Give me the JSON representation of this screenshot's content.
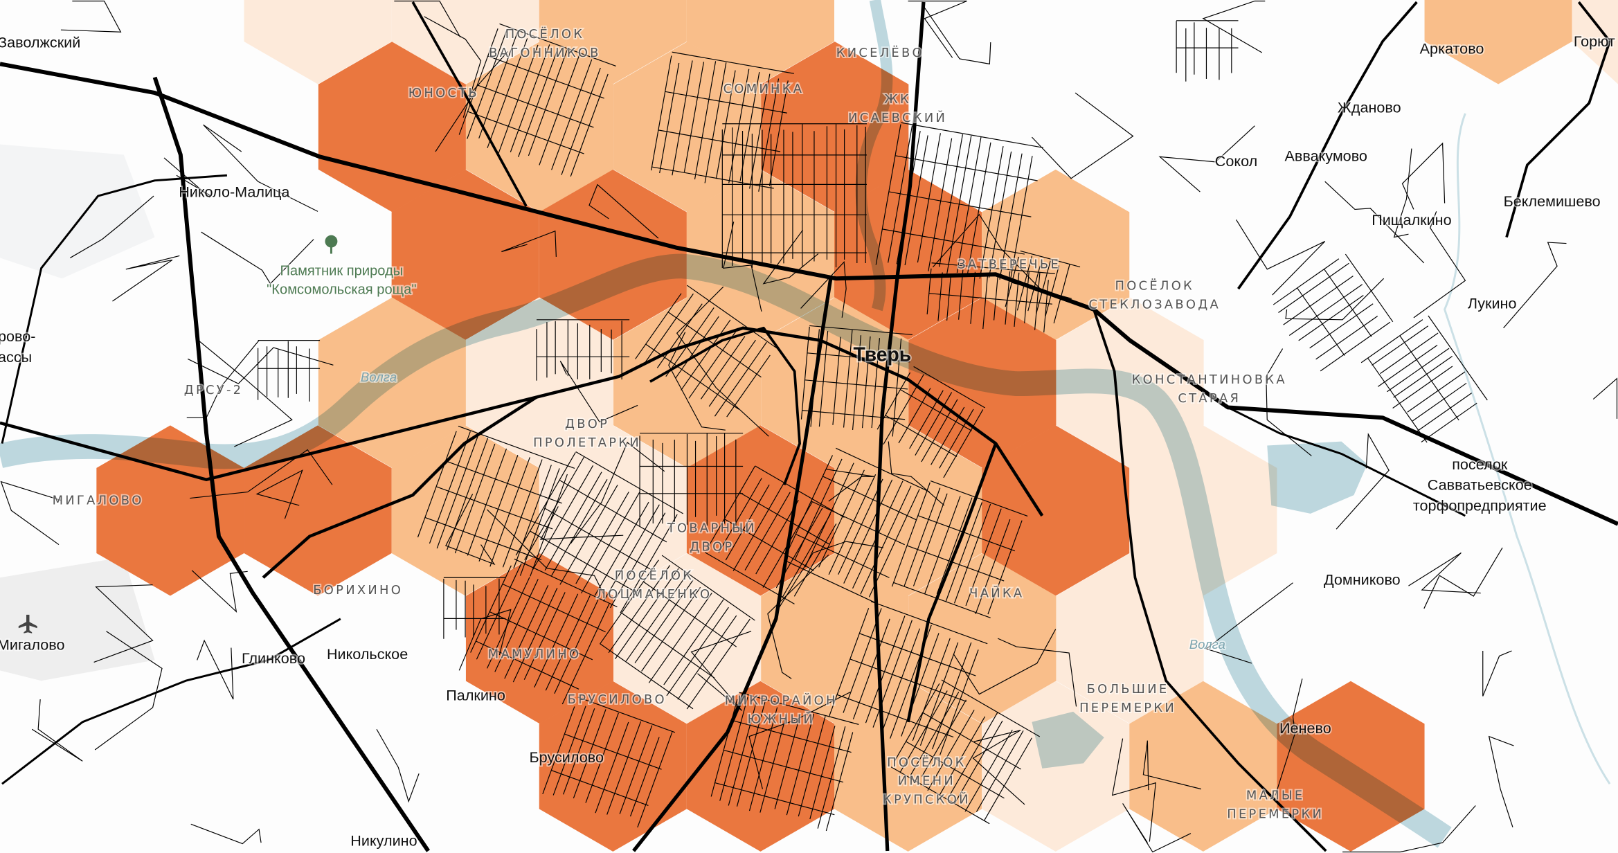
{
  "map": {
    "colors": {
      "background": "#fdfdfd",
      "water": "#a9ccd6",
      "hex_low": "#fdeada",
      "hex_medium": "#f9be8a",
      "hex_high": "#ea773f",
      "road": "#000000",
      "nature_label": "#4d7a52"
    },
    "icons": {
      "park": "tree-icon",
      "airport": "airplane-icon"
    },
    "labels": {
      "zavolzhsky": "Заволжский",
      "vagonnikov": [
        "ПОСЁЛОК",
        "ВАГОННИКОВ"
      ],
      "kiselevo": "КИСЕЛЁВО",
      "yunost": "ЮНОСТЬ",
      "sominka": "СОМИНКА",
      "isaevsky": [
        "ЖК",
        "ИСАЕВСКИЙ"
      ],
      "nikolo_malitsa": "Николо-Малица",
      "park": [
        "Памятник природы",
        "\"Комсомольская роща\""
      ],
      "zatverechye": "ЗАТВЕРЕЧЬЕ",
      "steklozavoda": [
        "ПОСЁЛОК",
        "СТЕКЛОЗАВОДА"
      ],
      "tver": "Тверь",
      "konstantinovka": [
        "КОНСТАНТИНОВКА",
        "СТАРАЯ"
      ],
      "volga_1": "Волга",
      "volga_2": "Волга",
      "drsu": "ДРСУ-2",
      "drovo": [
        "рово-",
        "ассы"
      ],
      "dvor_proletarki": [
        "ДВОР",
        "ПРОЛЕТАРКИ"
      ],
      "migalovo_district": "МИГАЛОВО",
      "tovarny_dvor": [
        "ТОВАРНЫЙ",
        "ДВОР"
      ],
      "lotsmanenko": [
        "ПОСЁЛОК",
        "ЛОЦМАНЕНКО"
      ],
      "borikhino": "БОРИХИНО",
      "chayka": "ЧАЙКА",
      "migalovo_airport": "Мигалово",
      "glinkovo": "Глинково",
      "nikolskoe": "Никольское",
      "mamulino": "МАМУЛИНО",
      "palkino": "Палкино",
      "brusilovo_district": "БРУСИЛОВО",
      "yuzhny": [
        "МИКРОРАЙОН",
        "ЮЖНЫЙ"
      ],
      "brusilovo": "Брусилово",
      "bolshie_peremerki": [
        "БОЛЬШИЕ",
        "ПЕРЕМЕРКИ"
      ],
      "krupskoy": [
        "ПОСЁЛОК",
        "ИМЕНИ",
        "КРУПСКОЙ"
      ],
      "nikulino": "Никулино",
      "malye_peremerki": [
        "МАЛЫЕ",
        "ПЕРЕМЕРКИ"
      ],
      "ienevo": "Иенево",
      "arkatovo": "Аркатово",
      "goryutino": "Горют",
      "zhdanovo": "Жданово",
      "sokol": "Сокол",
      "avvakumovo": "Аввакумово",
      "beklemishevo": "Беклемишево",
      "pishchalkino": "Пищалкино",
      "lukino": "Лукино",
      "savvatyevskoe": [
        "поселок",
        "Савватьевское",
        "торфопредприятие"
      ],
      "domnikovo": "Домниково"
    }
  }
}
